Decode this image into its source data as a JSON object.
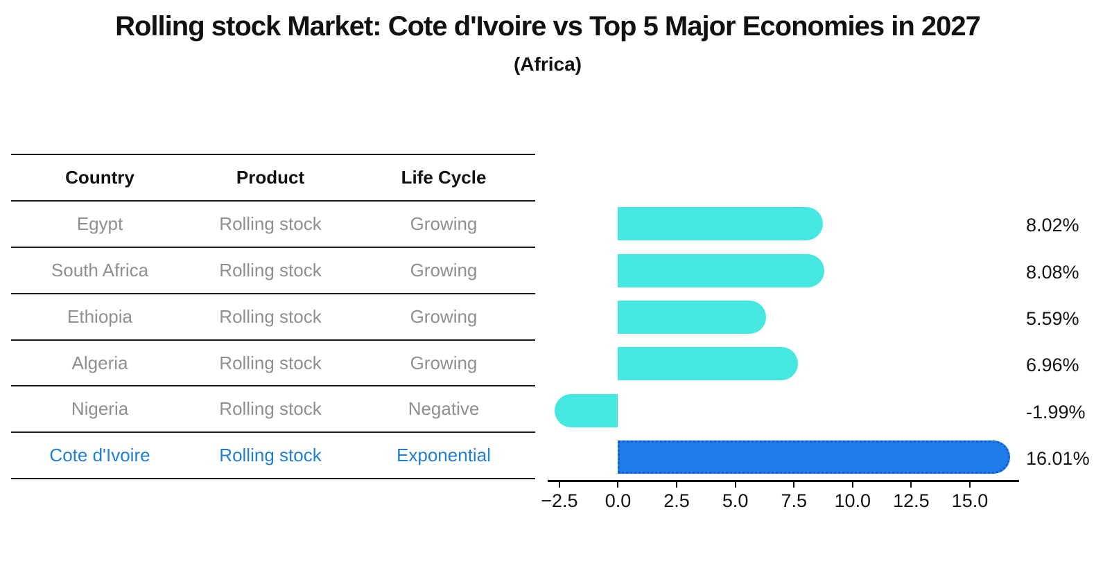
{
  "title": "Rolling stock Market: Cote d'Ivoire vs Top 5 Major Economies in 2027",
  "subtitle": "(Africa)",
  "table": {
    "headers": [
      "Country",
      "Product",
      "Life Cycle"
    ],
    "rows": [
      {
        "country": "Egypt",
        "product": "Rolling stock",
        "life_cycle": "Growing",
        "highlight": false
      },
      {
        "country": "South Africa",
        "product": "Rolling stock",
        "life_cycle": "Growing",
        "highlight": false
      },
      {
        "country": "Ethiopia",
        "product": "Rolling stock",
        "life_cycle": "Growing",
        "highlight": false
      },
      {
        "country": "Algeria",
        "product": "Rolling stock",
        "life_cycle": "Growing",
        "highlight": false
      },
      {
        "country": "Nigeria",
        "product": "Rolling stock",
        "life_cycle": "Negative",
        "highlight": false
      },
      {
        "country": "Cote d'Ivoire",
        "product": "Rolling stock",
        "life_cycle": "Exponential",
        "highlight": true
      }
    ]
  },
  "chart_data": {
    "type": "bar",
    "orientation": "horizontal",
    "title": "Rolling stock Market: Cote d'Ivoire vs Top 5 Major Economies in 2027",
    "subtitle": "(Africa)",
    "categories": [
      "Egypt",
      "South Africa",
      "Ethiopia",
      "Algeria",
      "Nigeria",
      "Cote d'Ivoire"
    ],
    "values": [
      8.02,
      8.08,
      5.59,
      6.96,
      -1.99,
      16.01
    ],
    "value_labels": [
      "8.02%",
      "8.08%",
      "5.59%",
      "6.96%",
      "-1.99%",
      "16.01%"
    ],
    "highlight_index": 5,
    "xlim": [
      -3.0,
      17.1
    ],
    "xticks": [
      -2.5,
      0.0,
      2.5,
      5.0,
      7.5,
      10.0,
      12.5,
      15.0
    ],
    "xtick_labels": [
      "−2.5",
      "0.0",
      "2.5",
      "5.0",
      "7.5",
      "10.0",
      "12.5",
      "15.0"
    ],
    "grid": false,
    "legend": "none"
  },
  "colors": {
    "bar": "#45e8e0",
    "highlight_bar": "#1e7ce8",
    "highlight_bar_edge": "#0f5fd7",
    "highlight_text": "#1f7fd0",
    "row_text": "#8f8f8f",
    "header_text": "#111111",
    "line": "#1a1a1a",
    "value_text": "#141414"
  }
}
